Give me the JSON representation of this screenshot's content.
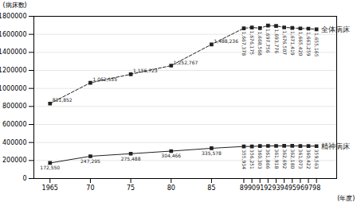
{
  "chart_data": {
    "type": "line",
    "xlabel": "(年度)",
    "ylabel": "(病床数)",
    "x": [
      1965,
      1970,
      1975,
      1980,
      1985,
      1989,
      1990,
      1991,
      1992,
      1993,
      1994,
      1995,
      1996,
      1997,
      1998
    ],
    "series": [
      {
        "name": "全体病床",
        "color": "#222222",
        "line_style": "dashed",
        "marker": "square",
        "values": [
          831852,
          1062555,
          1156723,
          1252767,
          1488236,
          1667378,
          1676175,
          1668568,
          1697756,
          1693776,
          1676507,
          1671419,
          1665420,
          1663259,
          1655165
        ],
        "value_labels": [
          "831,852",
          "1,062,555",
          "1,156,723",
          "1,252,767",
          "1,488,236",
          "1,667,378",
          "1,676,175",
          "1,668,568",
          "1,697,756",
          "1,693,776",
          "1,676,507",
          "1,671,419",
          "1,665,420",
          "1,663,259",
          "1,655,165"
        ]
      },
      {
        "name": "精神病床",
        "color": "#222222",
        "line_style": "solid",
        "marker": "square",
        "values": [
          172550,
          247295,
          275488,
          304466,
          335578,
          355934,
          356251,
          360303,
          361866,
          361918,
          362692,
          362180,
          361073,
          360422,
          359563
        ],
        "value_labels": [
          "172,550",
          "247,295",
          "275,488",
          "304,466",
          "335,578",
          "355,934",
          "356,251",
          "360,303",
          "361,866",
          "361,918",
          "362,692",
          "362,180",
          "361,073",
          "360,422",
          "359,563"
        ]
      }
    ],
    "xlim": [
      1963,
      2000.5
    ],
    "xticks": [
      1965,
      {
        "value": 1970,
        "label": "70"
      },
      {
        "value": 1975,
        "label": "75"
      },
      {
        "value": 1980,
        "label": "80"
      },
      {
        "value": 1985,
        "label": "85"
      },
      {
        "value": 1989,
        "label": "89"
      },
      {
        "value": 1990,
        "label": "90"
      },
      {
        "value": 1991,
        "label": "91"
      },
      {
        "value": 1992,
        "label": "92"
      },
      {
        "value": 1993,
        "label": "93"
      },
      {
        "value": 1994,
        "label": "94"
      },
      {
        "value": 1995,
        "label": "95"
      },
      {
        "value": 1996,
        "label": "96"
      },
      {
        "value": 1997,
        "label": "97"
      },
      {
        "value": 1998,
        "label": "98"
      }
    ],
    "ylim": [
      0,
      1800000
    ],
    "yticks": [
      0,
      200000,
      400000,
      600000,
      800000,
      1000000,
      1200000,
      1400000,
      1600000,
      1800000
    ],
    "grid": true,
    "data_labels": true
  }
}
